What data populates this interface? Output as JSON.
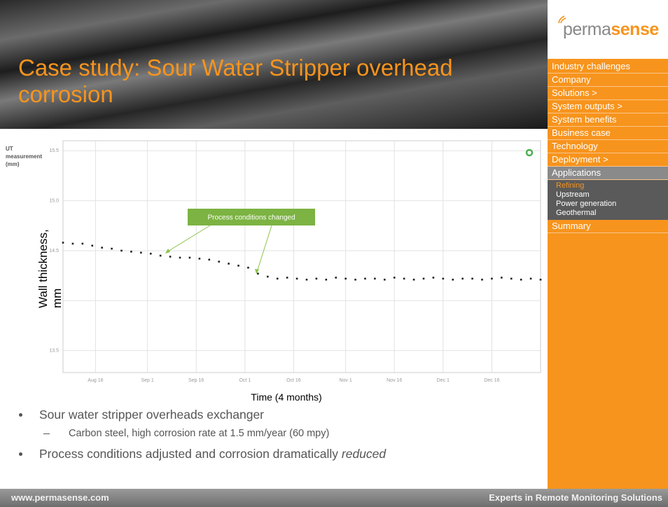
{
  "title": "Case study: Sour Water Stripper overhead corrosion",
  "logo": {
    "plain": "perma",
    "bold": "sense"
  },
  "menu": [
    {
      "label": "Industry challenges"
    },
    {
      "label": "Company"
    },
    {
      "label": "Solutions >"
    },
    {
      "label": "System outputs >"
    },
    {
      "label": "System benefits"
    },
    {
      "label": "Business case"
    },
    {
      "label": "Technology"
    },
    {
      "label": "Deployment >"
    },
    {
      "label": "Applications",
      "submenu": [
        "Refining",
        "Upstream",
        "Power generation",
        "Geothermal"
      ],
      "active": "Refining"
    },
    {
      "label": "Summary"
    }
  ],
  "chart_data": {
    "type": "scatter",
    "ylabel_lines": [
      "UT",
      "measurement",
      "(mm)"
    ],
    "overlay_ylabel": [
      "Wall thickness,",
      "mm"
    ],
    "xlabel": "Time (4 months)",
    "annotation": "Process conditions changed",
    "color": "#222222",
    "grid": true,
    "xlim": [
      218,
      365
    ],
    "xticks": [
      {
        "value": 228,
        "label": "Aug 16"
      },
      {
        "value": 244,
        "label": "Sep 1"
      },
      {
        "value": 259,
        "label": "Sep 16"
      },
      {
        "value": 274,
        "label": "Oct 1"
      },
      {
        "value": 289,
        "label": "Oct 16"
      },
      {
        "value": 305,
        "label": "Nov 1"
      },
      {
        "value": 320,
        "label": "Nov 16"
      },
      {
        "value": 335,
        "label": "Dec 1"
      },
      {
        "value": 350,
        "label": "Dec 16"
      }
    ],
    "ylim": [
      13.28,
      15.6
    ],
    "yticks": [
      {
        "value": 13.5,
        "label": "13.5"
      },
      {
        "value": 14.0,
        "label": ""
      },
      {
        "value": 14.5,
        "label": "14.5"
      },
      {
        "value": 15.0,
        "label": "15.0"
      },
      {
        "value": 15.5,
        "label": "15.5"
      }
    ],
    "x": [
      218,
      221,
      224,
      227,
      230,
      233,
      236,
      239,
      242,
      245,
      248,
      251,
      254,
      257,
      260,
      263,
      266,
      269,
      272,
      275,
      278,
      281,
      284,
      287,
      290,
      293,
      296,
      299,
      302,
      305,
      308,
      311,
      314,
      317,
      320,
      323,
      326,
      329,
      332,
      335,
      338,
      341,
      344,
      347,
      350,
      353,
      356,
      359,
      362,
      365
    ],
    "values": [
      14.58,
      14.57,
      14.57,
      14.55,
      14.53,
      14.52,
      14.5,
      14.49,
      14.48,
      14.47,
      14.45,
      14.44,
      14.43,
      14.43,
      14.42,
      14.41,
      14.39,
      14.37,
      14.35,
      14.33,
      14.27,
      14.24,
      14.22,
      14.23,
      14.22,
      14.21,
      14.22,
      14.21,
      14.23,
      14.22,
      14.21,
      14.22,
      14.22,
      14.21,
      14.23,
      14.22,
      14.21,
      14.22,
      14.23,
      14.22,
      14.21,
      14.22,
      14.22,
      14.21,
      14.22,
      14.23,
      14.22,
      14.21,
      14.22,
      14.21
    ]
  },
  "bullets": [
    {
      "text": "Sour water stripper overheads exchanger",
      "sub": [
        "Carbon steel, high corrosion rate at 1.5 mm/year (60 mpy)"
      ]
    },
    {
      "text": "Process conditions adjusted and corrosion dramatically ",
      "emphasis": "reduced"
    }
  ],
  "footer": {
    "left": "www.permasense.com",
    "right": "Experts in Remote Monitoring Solutions"
  }
}
